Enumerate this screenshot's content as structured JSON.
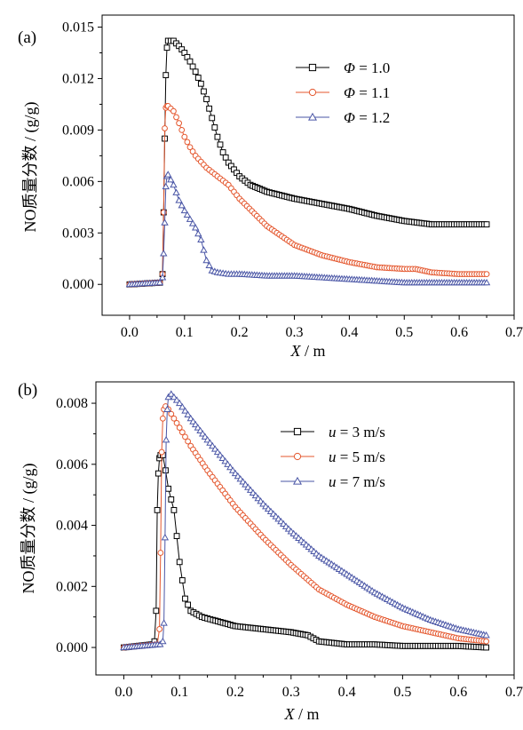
{
  "chart_data": [
    {
      "type": "line",
      "panel_label": "(a)",
      "xlabel_var": "X",
      "xlabel_unit": " / m",
      "ylabel": "NO质量分数 / (g/g)",
      "xlim": [
        -0.05,
        0.7
      ],
      "ylim": [
        -0.0018,
        0.0157
      ],
      "xticks": [
        0.0,
        0.1,
        0.2,
        0.3,
        0.4,
        0.5,
        0.6,
        0.7
      ],
      "yticks": [
        0.0,
        0.003,
        0.006,
        0.009,
        0.012,
        0.015
      ],
      "xtick_labels": [
        "0.0",
        "0.1",
        "0.2",
        "0.3",
        "0.4",
        "0.5",
        "0.6",
        "0.7"
      ],
      "ytick_labels": [
        "0.000",
        "0.003",
        "0.006",
        "0.009",
        "0.012",
        "0.015"
      ],
      "legend_position": "top-right",
      "series": [
        {
          "name": "Φ = 1.0",
          "legend_var": "Φ",
          "legend_rest": " = 1.0",
          "marker": "square",
          "color": "#000000",
          "x": [
            0.0,
            0.055,
            0.06,
            0.062,
            0.064,
            0.066,
            0.068,
            0.07,
            0.08,
            0.09,
            0.1,
            0.11,
            0.12,
            0.13,
            0.14,
            0.15,
            0.16,
            0.17,
            0.18,
            0.2,
            0.22,
            0.25,
            0.3,
            0.35,
            0.4,
            0.45,
            0.5,
            0.55,
            0.6,
            0.65
          ],
          "y": [
            0.0,
            0.0001,
            0.0006,
            0.0042,
            0.0085,
            0.0122,
            0.0138,
            0.0142,
            0.0142,
            0.0139,
            0.0135,
            0.013,
            0.0124,
            0.0117,
            0.0108,
            0.0097,
            0.0086,
            0.0077,
            0.0071,
            0.0063,
            0.0058,
            0.0054,
            0.005,
            0.0047,
            0.0044,
            0.004,
            0.0037,
            0.0035,
            0.0035,
            0.0035
          ]
        },
        {
          "name": "Φ = 1.1",
          "legend_var": "Φ",
          "legend_rest": " = 1.1",
          "marker": "circle",
          "color": "#e4572e",
          "x": [
            0.0,
            0.055,
            0.06,
            0.062,
            0.064,
            0.066,
            0.068,
            0.07,
            0.08,
            0.09,
            0.1,
            0.11,
            0.12,
            0.14,
            0.16,
            0.18,
            0.2,
            0.25,
            0.3,
            0.35,
            0.4,
            0.45,
            0.5,
            0.52,
            0.55,
            0.6,
            0.65
          ],
          "y": [
            0.0,
            0.0001,
            0.0006,
            0.0042,
            0.0091,
            0.0103,
            0.0104,
            0.0104,
            0.0101,
            0.0094,
            0.0086,
            0.008,
            0.0075,
            0.0068,
            0.0063,
            0.0058,
            0.005,
            0.0034,
            0.0023,
            0.0017,
            0.0013,
            0.001,
            0.0009,
            0.0009,
            0.0007,
            0.0006,
            0.0006
          ]
        },
        {
          "name": "Φ = 1.2",
          "legend_var": "Φ",
          "legend_rest": " = 1.2",
          "marker": "triangle",
          "color": "#4a56a6",
          "x": [
            0.0,
            0.055,
            0.06,
            0.062,
            0.064,
            0.066,
            0.068,
            0.07,
            0.08,
            0.09,
            0.1,
            0.11,
            0.12,
            0.13,
            0.14,
            0.15,
            0.16,
            0.18,
            0.2,
            0.25,
            0.3,
            0.35,
            0.4,
            0.45,
            0.5,
            0.55,
            0.6,
            0.65
          ],
          "y": [
            0.0,
            0.0001,
            0.0004,
            0.0018,
            0.0036,
            0.0057,
            0.0063,
            0.0064,
            0.0058,
            0.0049,
            0.0043,
            0.0038,
            0.0033,
            0.0026,
            0.0014,
            0.0008,
            0.0007,
            0.0006,
            0.0006,
            0.0005,
            0.0005,
            0.0004,
            0.0003,
            0.0002,
            0.0001,
            0.0001,
            0.0001,
            0.0001
          ]
        }
      ]
    },
    {
      "type": "line",
      "panel_label": "(b)",
      "xlabel_var": "X",
      "xlabel_unit": " / m",
      "ylabel": "NO质量分数 / (g/g)",
      "xlim": [
        -0.05,
        0.7
      ],
      "ylim": [
        -0.0009,
        0.0087
      ],
      "xticks": [
        0.0,
        0.1,
        0.2,
        0.3,
        0.4,
        0.5,
        0.6,
        0.7
      ],
      "yticks": [
        0.0,
        0.002,
        0.004,
        0.006,
        0.008
      ],
      "xtick_labels": [
        "0.0",
        "0.1",
        "0.2",
        "0.3",
        "0.4",
        "0.5",
        "0.6",
        "0.7"
      ],
      "ytick_labels": [
        "0.000",
        "0.002",
        "0.004",
        "0.006",
        "0.008"
      ],
      "legend_position": "top-right",
      "series": [
        {
          "name": "u = 3 m/s",
          "legend_var": "u",
          "legend_rest": " = 3 m/s",
          "marker": "square",
          "color": "#000000",
          "x": [
            0.0,
            0.05,
            0.055,
            0.058,
            0.06,
            0.062,
            0.064,
            0.066,
            0.07,
            0.075,
            0.08,
            0.09,
            0.1,
            0.11,
            0.12,
            0.14,
            0.16,
            0.2,
            0.25,
            0.3,
            0.33,
            0.35,
            0.4,
            0.45,
            0.5,
            0.55,
            0.6,
            0.65
          ],
          "y": [
            0.0,
            0.0001,
            0.0002,
            0.0012,
            0.0045,
            0.0057,
            0.0062,
            0.0063,
            0.0063,
            0.0058,
            0.0052,
            0.0045,
            0.0028,
            0.0016,
            0.0012,
            0.001,
            0.0009,
            0.0007,
            0.0006,
            0.0005,
            0.0004,
            0.0002,
            0.0001,
            0.0001,
            5e-05,
            5e-05,
            5e-05,
            0.0
          ],
          "legend_label": "u = 3 m/s"
        },
        {
          "name": "u = 5 m/s",
          "legend_var": "u",
          "legend_rest": " = 5 m/s",
          "marker": "circle",
          "color": "#e4572e",
          "x": [
            0.0,
            0.06,
            0.064,
            0.066,
            0.068,
            0.07,
            0.072,
            0.075,
            0.08,
            0.09,
            0.1,
            0.12,
            0.15,
            0.2,
            0.25,
            0.3,
            0.35,
            0.4,
            0.45,
            0.5,
            0.55,
            0.6,
            0.65
          ],
          "y": [
            0.0,
            0.0001,
            0.0006,
            0.0031,
            0.0064,
            0.0075,
            0.0078,
            0.0079,
            0.0078,
            0.0075,
            0.0072,
            0.0066,
            0.0058,
            0.0046,
            0.0036,
            0.0027,
            0.0019,
            0.0014,
            0.001,
            0.0007,
            0.0005,
            0.0003,
            0.0002
          ]
        },
        {
          "name": "u = 7 m/s",
          "legend_var": "u",
          "legend_rest": " = 7 m/s",
          "marker": "triangle",
          "color": "#4a56a6",
          "x": [
            0.0,
            0.065,
            0.07,
            0.072,
            0.074,
            0.076,
            0.078,
            0.08,
            0.085,
            0.09,
            0.1,
            0.12,
            0.15,
            0.2,
            0.25,
            0.3,
            0.35,
            0.4,
            0.45,
            0.5,
            0.55,
            0.6,
            0.65
          ],
          "y": [
            0.0,
            0.0001,
            0.0002,
            0.0008,
            0.0036,
            0.0068,
            0.0078,
            0.0082,
            0.0083,
            0.0082,
            0.008,
            0.0075,
            0.0068,
            0.0057,
            0.0047,
            0.0038,
            0.003,
            0.0024,
            0.0018,
            0.0013,
            0.0009,
            0.0006,
            0.0004
          ]
        }
      ]
    }
  ]
}
